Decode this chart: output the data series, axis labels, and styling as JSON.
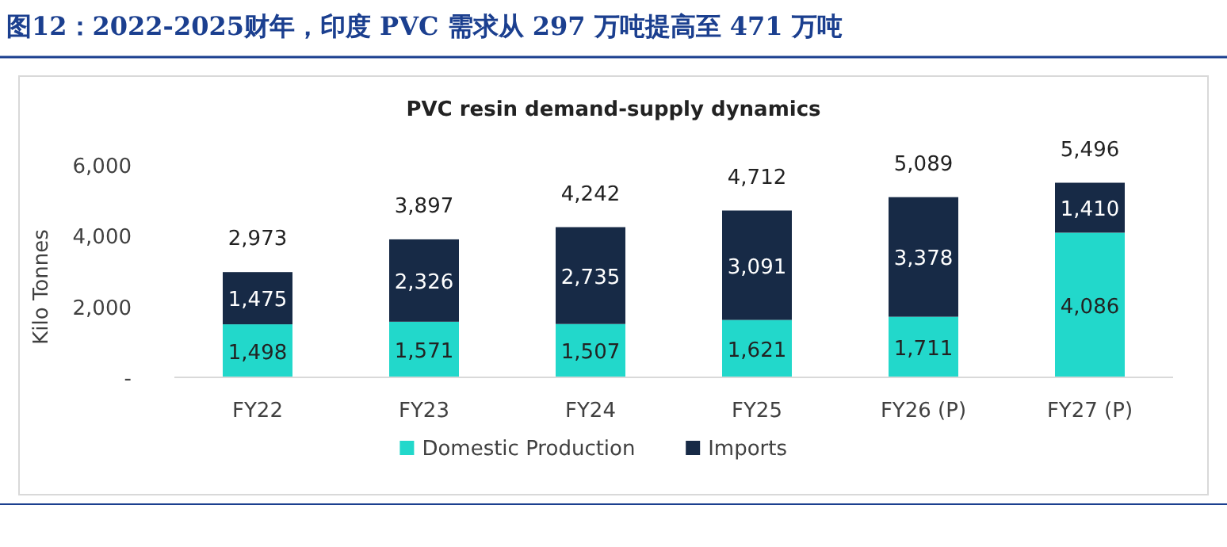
{
  "chart_data": {
    "type": "bar",
    "stacked": true,
    "title": "图12：2022-2025财年，印度 PVC 需求从 297 万吨提高至 471 万吨",
    "subtitle": "PVC resin demand-supply dynamics",
    "ylabel": "Kilo Tonnes",
    "categories": [
      "FY22",
      "FY23",
      "FY24",
      "FY25",
      "FY26 (P)",
      "FY27 (P)"
    ],
    "series": [
      {
        "name": "Domestic Production",
        "color": "#22d8cb",
        "values": [
          1498,
          1571,
          1507,
          1621,
          1711,
          4086
        ],
        "value_labels": [
          "1,498",
          "1,571",
          "1,507",
          "1,621",
          "1,711",
          "4,086"
        ]
      },
      {
        "name": "Imports",
        "color": "#172a46",
        "values": [
          1475,
          2326,
          2735,
          3091,
          3378,
          1410
        ],
        "value_labels": [
          "1,475",
          "2,326",
          "2,735",
          "3,091",
          "3,378",
          "1,410"
        ]
      }
    ],
    "totals": [
      "2,973",
      "3,897",
      "4,242",
      "4,712",
      "5,089",
      "5,496"
    ],
    "ylim": [
      0,
      6000
    ],
    "yticks": [
      {
        "value": 0,
        "label": "-"
      },
      {
        "value": 2000,
        "label": "2,000"
      },
      {
        "value": 4000,
        "label": "4,000"
      },
      {
        "value": 6000,
        "label": "6,000"
      }
    ],
    "grid": false,
    "legend": "bottom"
  }
}
